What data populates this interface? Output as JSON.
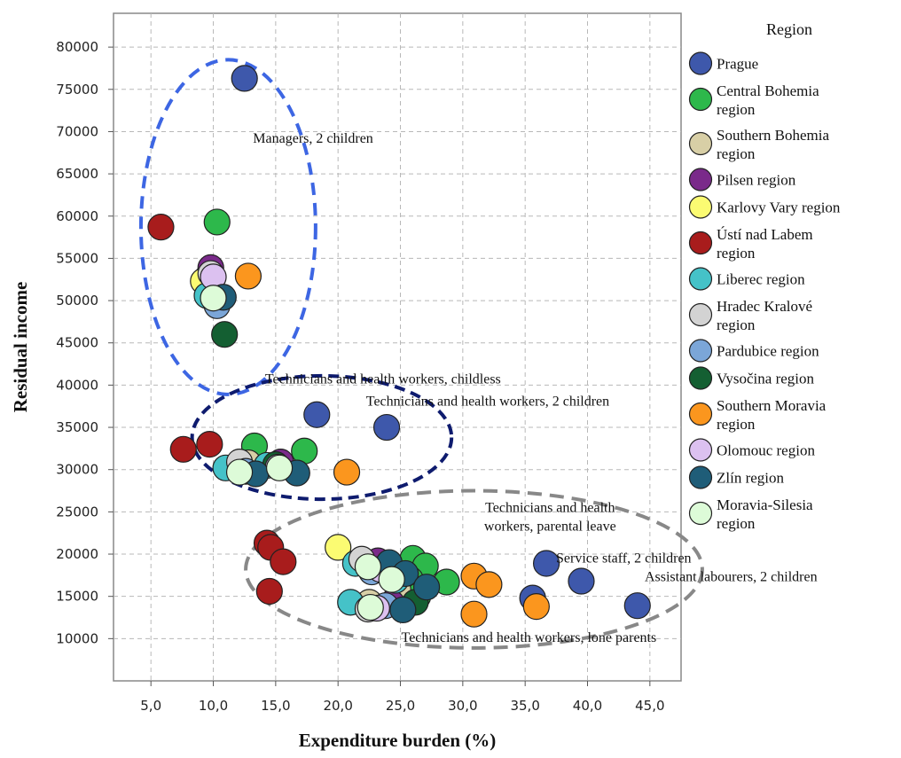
{
  "chart_data": {
    "type": "scatter",
    "xlabel": "Expenditure burden (%)",
    "ylabel": "Residual income",
    "xlim": [
      2.0,
      47.5
    ],
    "ylim": [
      5000,
      84000
    ],
    "x_ticks": [
      5,
      10,
      15,
      20,
      25,
      30,
      35,
      40,
      45
    ],
    "x_tick_labels": [
      "5,0",
      "10,0",
      "15,0",
      "20,0",
      "25,0",
      "30,0",
      "35,0",
      "40,0",
      "45,0"
    ],
    "y_ticks": [
      10000,
      15000,
      20000,
      25000,
      30000,
      35000,
      40000,
      45000,
      50000,
      55000,
      60000,
      65000,
      70000,
      75000,
      80000
    ],
    "y_tick_labels": [
      "10000",
      "15000",
      "20000",
      "25000",
      "30000",
      "35000",
      "40000",
      "45000",
      "50000",
      "55000",
      "60000",
      "65000",
      "70000",
      "75000",
      "80000"
    ],
    "grid": true,
    "legend": {
      "title": "Region",
      "placement": "right",
      "entries": [
        {
          "lines": [
            "Prague"
          ],
          "color": "#3e58ab"
        },
        {
          "lines": [
            "Central Bohemia",
            "region"
          ],
          "color": "#2db84b"
        },
        {
          "lines": [
            "Southern Bohemia",
            "region"
          ],
          "color": "#d8cfa6"
        },
        {
          "lines": [
            "Pilsen region"
          ],
          "color": "#7a2a8a"
        },
        {
          "lines": [
            "Karlovy Vary region"
          ],
          "color": "#fbfb72"
        },
        {
          "lines": [
            "Ústí nad Labem",
            "region"
          ],
          "color": "#a81c1c"
        },
        {
          "lines": [
            "Liberec region"
          ],
          "color": "#45c2c8"
        },
        {
          "lines": [
            "Hradec Kralové",
            "region"
          ],
          "color": "#d3d3d3"
        },
        {
          "lines": [
            "Pardubice region"
          ],
          "color": "#7ba6d8"
        },
        {
          "lines": [
            "Vysočina region"
          ],
          "color": "#145f32"
        },
        {
          "lines": [
            "Southern Moravia",
            "region"
          ],
          "color": "#fb961e"
        },
        {
          "lines": [
            "Olomouc region"
          ],
          "color": "#dcc1f0"
        },
        {
          "lines": [
            "Zlín region"
          ],
          "color": "#1f5d78"
        },
        {
          "lines": [
            "Moravia-Silesia",
            "region"
          ],
          "color": "#ddfbd8"
        }
      ]
    },
    "series": [
      {
        "region_index": 0,
        "points": [
          [
            12.5,
            76300
          ],
          [
            18.3,
            36500
          ],
          [
            23.9,
            35000
          ],
          [
            36.7,
            18900
          ],
          [
            39.5,
            16800
          ],
          [
            44.0,
            13900
          ],
          [
            35.6,
            14800
          ]
        ]
      },
      {
        "region_index": 1,
        "points": [
          [
            10.3,
            59300
          ],
          [
            13.3,
            32800
          ],
          [
            17.3,
            32200
          ],
          [
            26.0,
            19500
          ],
          [
            27.0,
            18600
          ],
          [
            28.7,
            16700
          ],
          [
            25.8,
            17000
          ],
          [
            23.5,
            18300
          ],
          [
            26.4,
            15000
          ]
        ]
      },
      {
        "region_index": 2,
        "points": [
          [
            9.5,
            52700
          ],
          [
            12.8,
            30800
          ],
          [
            22.5,
            14300
          ],
          [
            24.8,
            15800
          ]
        ]
      },
      {
        "region_index": 3,
        "points": [
          [
            9.8,
            53900
          ],
          [
            15.4,
            30900
          ],
          [
            23.2,
            19200
          ],
          [
            24.3,
            14200
          ]
        ]
      },
      {
        "region_index": 4,
        "points": [
          [
            9.2,
            52300
          ],
          [
            20.0,
            20800
          ]
        ]
      },
      {
        "region_index": 5,
        "points": [
          [
            5.8,
            58700
          ],
          [
            7.6,
            32400
          ],
          [
            9.7,
            33000
          ],
          [
            14.3,
            21300
          ],
          [
            14.6,
            20800
          ],
          [
            15.6,
            19100
          ],
          [
            14.5,
            15600
          ]
        ]
      },
      {
        "region_index": 6,
        "points": [
          [
            9.5,
            50600
          ],
          [
            11.0,
            30200
          ],
          [
            14.3,
            30500
          ],
          [
            21.4,
            18900
          ],
          [
            21.0,
            14300
          ],
          [
            24.6,
            16900
          ]
        ]
      },
      {
        "region_index": 7,
        "points": [
          [
            9.8,
            53200
          ],
          [
            12.1,
            30900
          ],
          [
            21.9,
            19400
          ],
          [
            22.4,
            13500
          ]
        ]
      },
      {
        "region_index": 8,
        "points": [
          [
            10.3,
            49400
          ],
          [
            12.6,
            29800
          ],
          [
            22.7,
            17900
          ],
          [
            23.8,
            13900
          ]
        ]
      },
      {
        "region_index": 9,
        "points": [
          [
            10.9,
            46000
          ],
          [
            15.0,
            30600
          ],
          [
            26.2,
            14300
          ]
        ]
      },
      {
        "region_index": 10,
        "points": [
          [
            12.8,
            52900
          ],
          [
            20.7,
            29700
          ],
          [
            30.9,
            17400
          ],
          [
            32.1,
            16400
          ],
          [
            30.9,
            12900
          ],
          [
            35.9,
            13800
          ]
        ]
      },
      {
        "region_index": 11,
        "points": [
          [
            10.0,
            52800
          ],
          [
            15.2,
            30300
          ],
          [
            23.4,
            18200
          ],
          [
            23.1,
            13600
          ]
        ]
      },
      {
        "region_index": 12,
        "points": [
          [
            10.8,
            50400
          ],
          [
            13.4,
            29500
          ],
          [
            16.7,
            29600
          ],
          [
            24.1,
            19000
          ],
          [
            25.4,
            17700
          ],
          [
            27.1,
            16100
          ],
          [
            25.2,
            13400
          ]
        ]
      },
      {
        "region_index": 13,
        "points": [
          [
            10.0,
            50300
          ],
          [
            12.1,
            29700
          ],
          [
            15.3,
            30200
          ],
          [
            22.4,
            18500
          ],
          [
            24.3,
            17000
          ],
          [
            22.6,
            13700
          ]
        ]
      }
    ],
    "annotations": [
      {
        "lines": [
          "Managers, 2 children"
        ],
        "x": 18.0,
        "y": 68700
      },
      {
        "lines": [
          "Technicians and health workers, childless"
        ],
        "x": 23.6,
        "y": 40200
      },
      {
        "lines": [
          "Technicians and health workers, 2 children"
        ],
        "x": 32.0,
        "y": 37600
      },
      {
        "lines": [
          "Technicians and health",
          "workers, parental leave"
        ],
        "x": 37.0,
        "y": 25000
      },
      {
        "lines": [
          "Service staff, 2 children"
        ],
        "x": 42.9,
        "y": 19000
      },
      {
        "lines": [
          "Assistant labourers, 2 children"
        ],
        "x": 51.5,
        "y": 16800
      },
      {
        "lines": [
          "Technicians and health workers, lone parents"
        ],
        "x": 35.3,
        "y": 9600
      }
    ],
    "clusters": [
      {
        "cx": 11.2,
        "cy": 58700,
        "rx": 7.0,
        "ry": 19800,
        "color": "#3d66e3",
        "dash": "14,9"
      },
      {
        "cx": 18.7,
        "cy": 33800,
        "rx": 10.4,
        "ry": 7300,
        "color": "#0e1b6e",
        "dash": "12,7"
      },
      {
        "cx": 30.9,
        "cy": 18200,
        "rx": 18.3,
        "ry": 9300,
        "color": "#888888",
        "dash": "16,9"
      }
    ]
  }
}
